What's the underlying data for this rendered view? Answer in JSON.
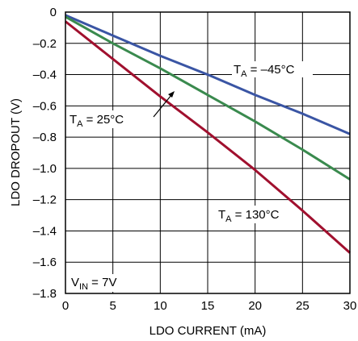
{
  "chart_data": {
    "type": "line",
    "xlabel": "LDO CURRENT (mA)",
    "ylabel": "LDO DROPOUT (V)",
    "xlim": [
      0,
      30
    ],
    "ylim": [
      -1.8,
      0
    ],
    "x_ticks": [
      "0",
      "5",
      "10",
      "15",
      "20",
      "25",
      "30"
    ],
    "y_ticks": [
      "0",
      "–0.2",
      "–0.4",
      "–0.6",
      "–0.8",
      "–1.0",
      "–1.2",
      "–1.4",
      "–1.6",
      "–1.8"
    ],
    "grid": true,
    "series": [
      {
        "color": "#3a55a4",
        "x": [
          0,
          5,
          10,
          15,
          20,
          25,
          30
        ],
        "y": [
          -0.02,
          -0.15,
          -0.28,
          -0.4,
          -0.53,
          -0.65,
          -0.78
        ]
      },
      {
        "color": "#3a8a4e",
        "x": [
          0,
          5,
          10,
          15,
          20,
          25,
          30
        ],
        "y": [
          -0.03,
          -0.2,
          -0.36,
          -0.53,
          -0.7,
          -0.88,
          -1.07
        ]
      },
      {
        "color": "#a0102e",
        "x": [
          0,
          5,
          10,
          15,
          20,
          25,
          30
        ],
        "y": [
          -0.06,
          -0.3,
          -0.54,
          -0.77,
          -1.01,
          -1.27,
          -1.54
        ]
      }
    ],
    "annotations": {
      "t_neg45": {
        "main": "T",
        "sub": "A",
        "rest": " = –45°C"
      },
      "t_25": {
        "main": "T",
        "sub": "A",
        "rest": " = 25°C"
      },
      "t_130": {
        "main": "T",
        "sub": "A",
        "rest": " = 130°C"
      },
      "vin": {
        "main": "V",
        "sub": "IN",
        "rest": " = 7V"
      }
    }
  }
}
